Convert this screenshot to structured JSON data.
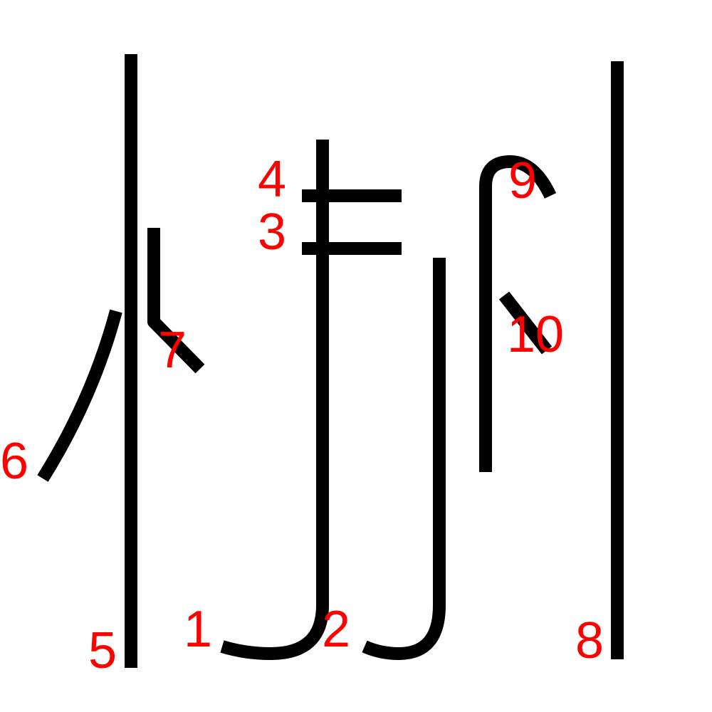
{
  "colors": {
    "stroke": "#000000",
    "label": "#ff0000",
    "background": "#ffffff"
  },
  "strokes": [
    {
      "number": "1"
    },
    {
      "number": "2"
    },
    {
      "number": "3"
    },
    {
      "number": "4"
    },
    {
      "number": "5"
    },
    {
      "number": "6"
    },
    {
      "number": "7"
    },
    {
      "number": "8"
    },
    {
      "number": "9"
    },
    {
      "number": "10"
    }
  ]
}
